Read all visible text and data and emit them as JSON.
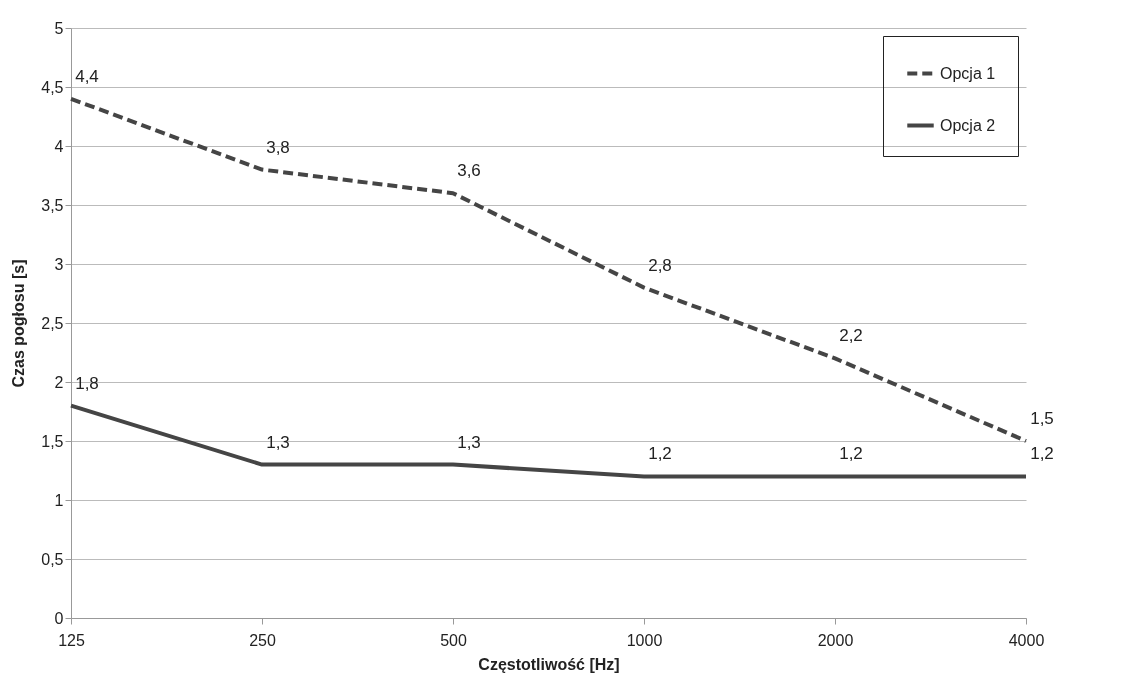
{
  "chart_data": {
    "type": "line",
    "xlabel": "Częstotliwość [Hz]",
    "ylabel": "Czas pogłosu [s]",
    "categories": [
      "125",
      "250",
      "500",
      "1000",
      "2000",
      "4000"
    ],
    "series": [
      {
        "name": "Opcja 1",
        "color": "#454545",
        "line_style": "dashed",
        "values": [
          4.4,
          3.8,
          3.6,
          2.8,
          2.2,
          1.5
        ],
        "value_labels": [
          "4,4",
          "3,8",
          "3,6",
          "2,8",
          "2,2",
          "1,5"
        ]
      },
      {
        "name": "Opcja 2",
        "color": "#454545",
        "line_style": "solid",
        "values": [
          1.8,
          1.3,
          1.3,
          1.2,
          1.2,
          1.2
        ],
        "value_labels": [
          "1,8",
          "1,3",
          "1,3",
          "1,2",
          "1,2",
          "1,2"
        ]
      }
    ],
    "ylim": [
      0,
      5
    ],
    "yticks": [
      0,
      {
        "value": 0.5,
        "label": "0,5"
      },
      1,
      {
        "value": 1.5,
        "label": "1,5"
      },
      2,
      {
        "value": 2.5,
        "label": "2,5"
      },
      3,
      {
        "value": 3.5,
        "label": "3,5"
      },
      4,
      {
        "value": 4.5,
        "label": "4,5"
      },
      5
    ],
    "grid": "y",
    "legend": "top right"
  }
}
